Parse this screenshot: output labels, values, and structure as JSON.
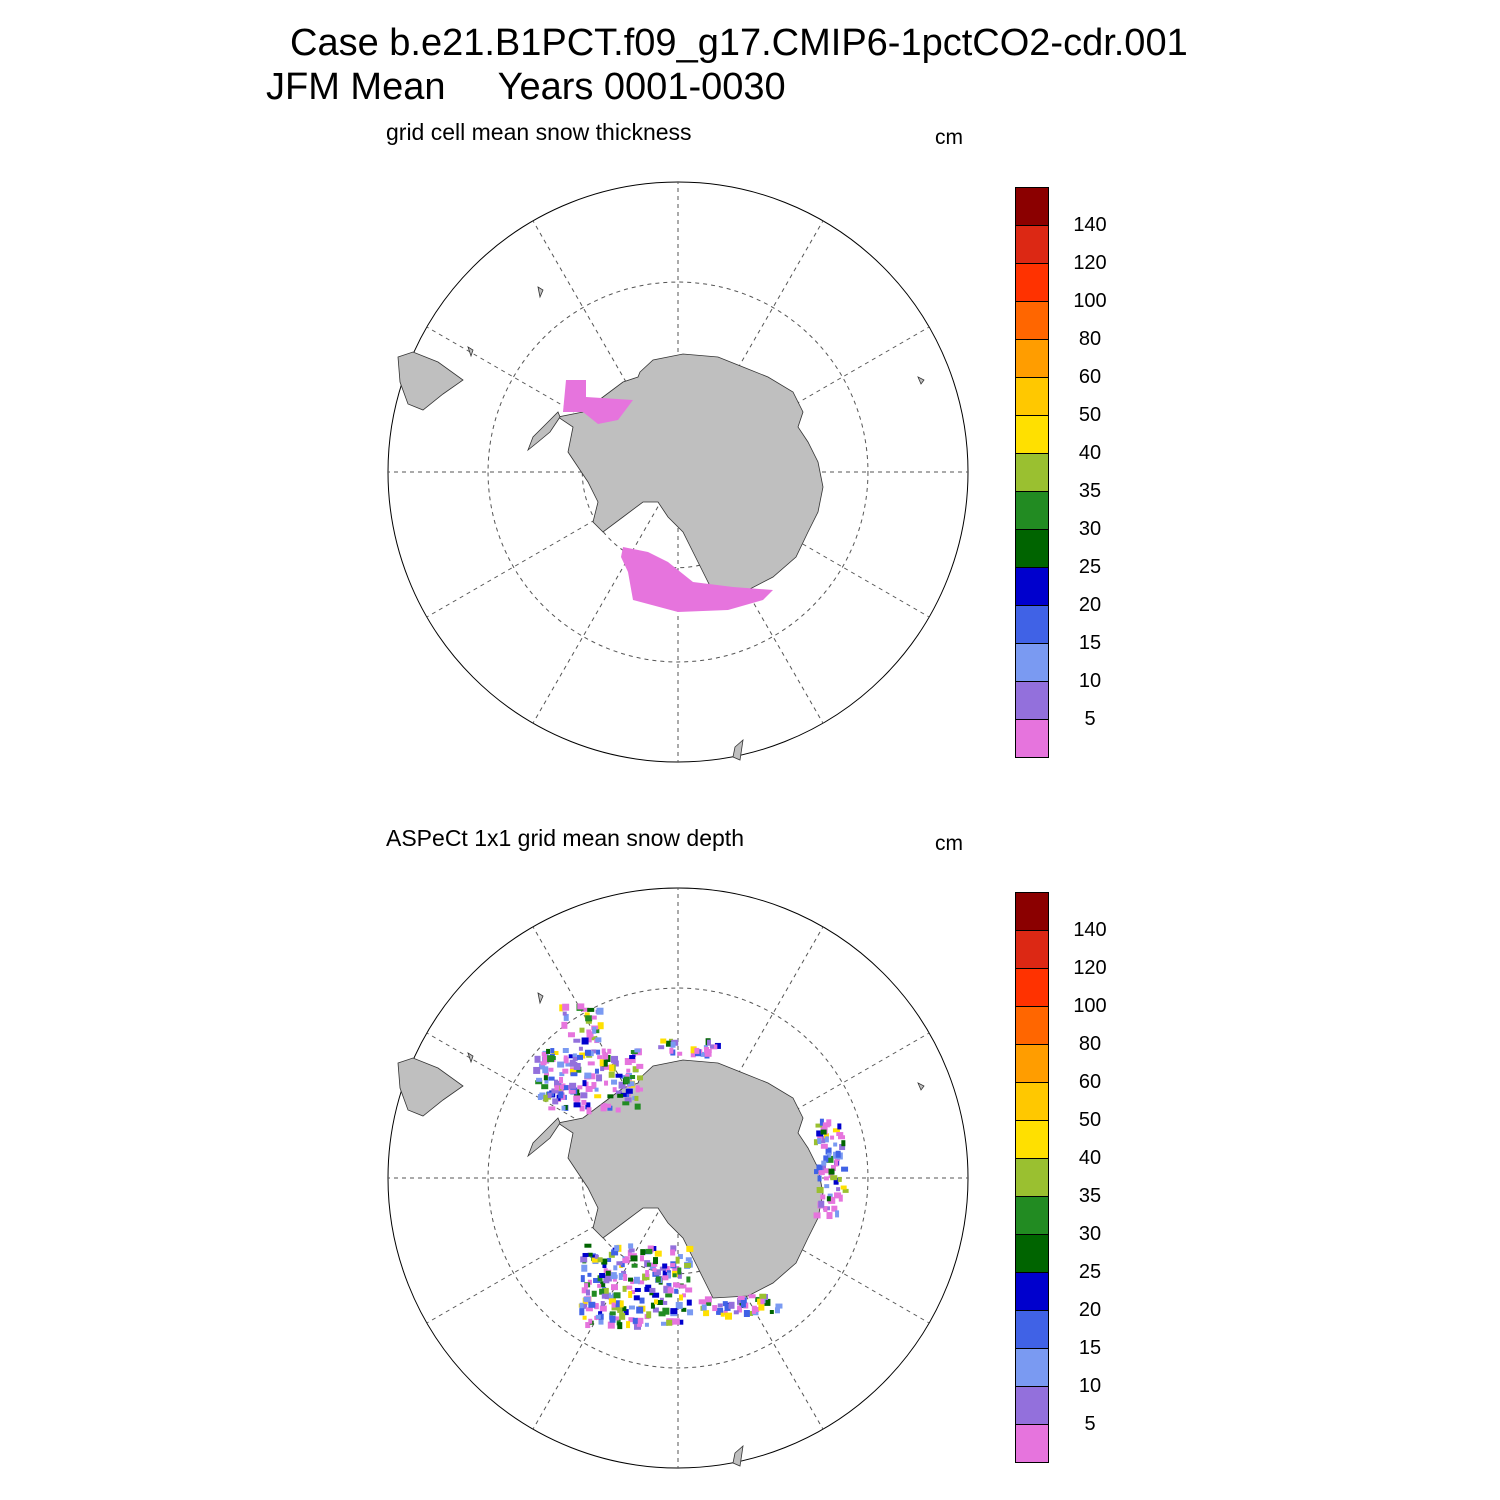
{
  "title": {
    "line1": "Case b.e21.B1PCT.f09_g17.CMIP6-1pctCO2-cdr.001",
    "line2": "JFM Mean     Years 0001-0030"
  },
  "colors": {
    "land": "#bfbfbf",
    "graticule": "#555555",
    "palette": [
      "#e674dd",
      "#9370dc",
      "#7a9af2",
      "#4062e6",
      "#0000cd",
      "#006400",
      "#228b22",
      "#9ac030",
      "#ffe000",
      "#ffc800",
      "#ff9d00",
      "#ff6600",
      "#ff3200",
      "#dc2814",
      "#8b0000"
    ]
  },
  "colorbar": {
    "tick_labels": [
      "5",
      "10",
      "15",
      "20",
      "25",
      "30",
      "35",
      "40",
      "50",
      "60",
      "80",
      "100",
      "120",
      "140"
    ]
  },
  "panels": [
    {
      "name": "model",
      "subtitle": "grid cell mean snow thickness",
      "units": "cm"
    },
    {
      "name": "obs",
      "subtitle": "ASPeCt 1x1 grid mean snow depth",
      "units": "cm"
    }
  ]
}
